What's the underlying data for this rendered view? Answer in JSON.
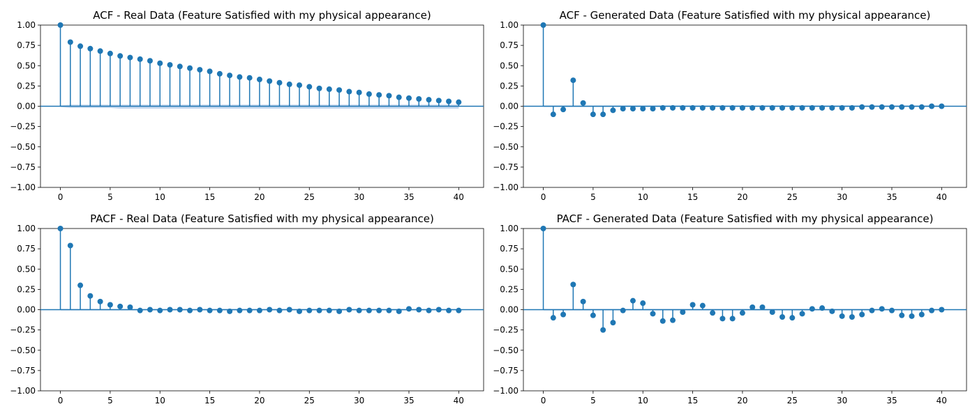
{
  "colors": {
    "stem": "#1f77b4",
    "band": "#aec7e8",
    "axis": "#000000"
  },
  "chart_data": [
    {
      "type": "stem",
      "title": "ACF - Real Data (Feature Satisfied with my physical appearance)",
      "xlim": [
        -2,
        42.5
      ],
      "ylim": [
        -1.0,
        1.0
      ],
      "xticks": [
        0,
        5,
        10,
        15,
        20,
        25,
        30,
        35,
        40
      ],
      "yticks": [
        1.0,
        0.75,
        0.5,
        0.25,
        0.0,
        -0.25,
        -0.5,
        -0.75,
        -1.0
      ],
      "ytick_labels": [
        "1.00",
        "0.75",
        "0.50",
        "0.25",
        "0.00",
        "−0.25",
        "−0.50",
        "−0.75",
        "−1.00"
      ],
      "lags": [
        0,
        1,
        2,
        3,
        4,
        5,
        6,
        7,
        8,
        9,
        10,
        11,
        12,
        13,
        14,
        15,
        16,
        17,
        18,
        19,
        20,
        21,
        22,
        23,
        24,
        25,
        26,
        27,
        28,
        29,
        30,
        31,
        32,
        33,
        34,
        35,
        36,
        37,
        38,
        39,
        40
      ],
      "values": [
        1.0,
        0.79,
        0.74,
        0.71,
        0.68,
        0.65,
        0.62,
        0.6,
        0.58,
        0.56,
        0.53,
        0.51,
        0.49,
        0.47,
        0.45,
        0.43,
        0.4,
        0.38,
        0.36,
        0.35,
        0.33,
        0.31,
        0.29,
        0.27,
        0.26,
        0.24,
        0.22,
        0.21,
        0.2,
        0.18,
        0.17,
        0.15,
        0.14,
        0.13,
        0.11,
        0.1,
        0.09,
        0.08,
        0.07,
        0.06,
        0.05
      ],
      "confidence_band": {
        "upper": [
          0.01,
          0.02,
          0.02,
          0.02,
          0.02,
          0.02,
          0.02,
          0.02,
          0.02,
          0.02,
          0.02,
          0.02,
          0.02,
          0.02,
          0.02,
          0.02,
          0.02,
          0.02,
          0.02,
          0.02,
          0.02,
          0.02,
          0.02,
          0.02,
          0.02,
          0.02,
          0.02,
          0.02,
          0.02,
          0.02,
          0.02,
          0.02,
          0.02,
          0.02,
          0.02,
          0.02,
          0.02,
          0.02,
          0.02,
          0.02,
          0.02
        ],
        "lower": [
          -0.01,
          -0.02,
          -0.02,
          -0.02,
          -0.02,
          -0.02,
          -0.03,
          -0.03,
          -0.03,
          -0.03,
          -0.03,
          -0.03,
          -0.03,
          -0.03,
          -0.03,
          -0.03,
          -0.03,
          -0.03,
          -0.03,
          -0.03,
          -0.03,
          -0.03,
          -0.03,
          -0.03,
          -0.03,
          -0.03,
          -0.03,
          -0.03,
          -0.03,
          -0.03,
          -0.03,
          -0.03,
          -0.03,
          -0.03,
          -0.03,
          -0.03,
          -0.03,
          -0.03,
          -0.03,
          -0.03,
          -0.03
        ]
      }
    },
    {
      "type": "stem",
      "title": "ACF - Generated Data (Feature Satisfied with my physical appearance)",
      "xlim": [
        -2,
        42.5
      ],
      "ylim": [
        -1.0,
        1.0
      ],
      "xticks": [
        0,
        5,
        10,
        15,
        20,
        25,
        30,
        35,
        40
      ],
      "yticks": [
        1.0,
        0.75,
        0.5,
        0.25,
        0.0,
        -0.25,
        -0.5,
        -0.75,
        -1.0
      ],
      "ytick_labels": [
        "1.00",
        "0.75",
        "0.50",
        "0.25",
        "0.00",
        "−0.25",
        "−0.50",
        "−0.75",
        "−1.00"
      ],
      "lags": [
        0,
        1,
        2,
        3,
        4,
        5,
        6,
        7,
        8,
        9,
        10,
        11,
        12,
        13,
        14,
        15,
        16,
        17,
        18,
        19,
        20,
        21,
        22,
        23,
        24,
        25,
        26,
        27,
        28,
        29,
        30,
        31,
        32,
        33,
        34,
        35,
        36,
        37,
        38,
        39,
        40
      ],
      "values": [
        1.0,
        -0.1,
        -0.04,
        0.32,
        0.04,
        -0.1,
        -0.1,
        -0.05,
        -0.03,
        -0.03,
        -0.03,
        -0.03,
        -0.02,
        -0.02,
        -0.02,
        -0.02,
        -0.02,
        -0.02,
        -0.02,
        -0.02,
        -0.02,
        -0.02,
        -0.02,
        -0.02,
        -0.02,
        -0.02,
        -0.02,
        -0.02,
        -0.02,
        -0.02,
        -0.02,
        -0.02,
        -0.01,
        -0.01,
        -0.01,
        -0.01,
        -0.01,
        -0.01,
        -0.01,
        0.0,
        0.0
      ],
      "confidence_band": {
        "upper": [
          0.01,
          0.01,
          0.01,
          0.01,
          0.01,
          0.01,
          0.01,
          0.01,
          0.01,
          0.01,
          0.01,
          0.01,
          0.01,
          0.01,
          0.01,
          0.01,
          0.01,
          0.01,
          0.01,
          0.01,
          0.01,
          0.01,
          0.01,
          0.01,
          0.01,
          0.01,
          0.01,
          0.01,
          0.01,
          0.01,
          0.01,
          0.01,
          0.01,
          0.01,
          0.01,
          0.01,
          0.01,
          0.01,
          0.01,
          0.01,
          0.01
        ],
        "lower": [
          -0.01,
          -0.01,
          -0.01,
          -0.01,
          -0.01,
          -0.01,
          -0.01,
          -0.01,
          -0.01,
          -0.01,
          -0.01,
          -0.01,
          -0.01,
          -0.01,
          -0.01,
          -0.01,
          -0.01,
          -0.01,
          -0.01,
          -0.01,
          -0.01,
          -0.01,
          -0.01,
          -0.01,
          -0.01,
          -0.01,
          -0.01,
          -0.01,
          -0.01,
          -0.01,
          -0.01,
          -0.01,
          -0.01,
          -0.01,
          -0.01,
          -0.01,
          -0.01,
          -0.01,
          -0.01,
          -0.01,
          -0.01
        ]
      }
    },
    {
      "type": "stem",
      "title": "PACF - Real Data (Feature Satisfied with my physical appearance)",
      "xlim": [
        -2,
        42.5
      ],
      "ylim": [
        -1.0,
        1.0
      ],
      "xticks": [
        0,
        5,
        10,
        15,
        20,
        25,
        30,
        35,
        40
      ],
      "yticks": [
        1.0,
        0.75,
        0.5,
        0.25,
        0.0,
        -0.25,
        -0.5,
        -0.75,
        -1.0
      ],
      "ytick_labels": [
        "1.00",
        "0.75",
        "0.50",
        "0.25",
        "0.00",
        "−0.25",
        "−0.50",
        "−0.75",
        "−1.00"
      ],
      "lags": [
        0,
        1,
        2,
        3,
        4,
        5,
        6,
        7,
        8,
        9,
        10,
        11,
        12,
        13,
        14,
        15,
        16,
        17,
        18,
        19,
        20,
        21,
        22,
        23,
        24,
        25,
        26,
        27,
        28,
        29,
        30,
        31,
        32,
        33,
        34,
        35,
        36,
        37,
        38,
        39,
        40
      ],
      "values": [
        1.0,
        0.79,
        0.3,
        0.17,
        0.1,
        0.06,
        0.04,
        0.03,
        -0.01,
        0.0,
        -0.01,
        0.0,
        0.0,
        -0.01,
        0.0,
        -0.01,
        -0.01,
        -0.02,
        -0.01,
        -0.01,
        -0.01,
        0.0,
        -0.01,
        0.0,
        -0.02,
        -0.01,
        -0.01,
        -0.01,
        -0.02,
        0.0,
        -0.01,
        -0.01,
        -0.01,
        -0.01,
        -0.02,
        0.01,
        0.0,
        -0.01,
        0.0,
        -0.01,
        -0.01
      ],
      "confidence_band": {
        "upper": [
          0.01,
          0.01,
          0.01,
          0.01,
          0.01,
          0.01,
          0.01,
          0.01,
          0.01,
          0.01,
          0.01,
          0.01,
          0.01,
          0.01,
          0.01,
          0.01,
          0.01,
          0.01,
          0.01,
          0.01,
          0.01,
          0.01,
          0.01,
          0.01,
          0.01,
          0.01,
          0.01,
          0.01,
          0.01,
          0.01,
          0.01,
          0.01,
          0.01,
          0.01,
          0.01,
          0.01,
          0.01,
          0.01,
          0.01,
          0.01,
          0.01
        ],
        "lower": [
          -0.01,
          -0.01,
          -0.01,
          -0.01,
          -0.01,
          -0.01,
          -0.01,
          -0.01,
          -0.01,
          -0.01,
          -0.01,
          -0.01,
          -0.01,
          -0.01,
          -0.01,
          -0.01,
          -0.01,
          -0.01,
          -0.01,
          -0.01,
          -0.01,
          -0.01,
          -0.01,
          -0.01,
          -0.01,
          -0.01,
          -0.01,
          -0.01,
          -0.01,
          -0.01,
          -0.01,
          -0.01,
          -0.01,
          -0.01,
          -0.01,
          -0.01,
          -0.01,
          -0.01,
          -0.01,
          -0.01,
          -0.01
        ]
      }
    },
    {
      "type": "stem",
      "title": "PACF - Generated Data (Feature Satisfied with my physical appearance)",
      "xlim": [
        -2,
        42.5
      ],
      "ylim": [
        -1.0,
        1.0
      ],
      "xticks": [
        0,
        5,
        10,
        15,
        20,
        25,
        30,
        35,
        40
      ],
      "yticks": [
        1.0,
        0.75,
        0.5,
        0.25,
        0.0,
        -0.25,
        -0.5,
        -0.75,
        -1.0
      ],
      "ytick_labels": [
        "1.00",
        "0.75",
        "0.50",
        "0.25",
        "0.00",
        "−0.25",
        "−0.50",
        "−0.75",
        "−1.00"
      ],
      "lags": [
        0,
        1,
        2,
        3,
        4,
        5,
        6,
        7,
        8,
        9,
        10,
        11,
        12,
        13,
        14,
        15,
        16,
        17,
        18,
        19,
        20,
        21,
        22,
        23,
        24,
        25,
        26,
        27,
        28,
        29,
        30,
        31,
        32,
        33,
        34,
        35,
        36,
        37,
        38,
        39,
        40
      ],
      "values": [
        1.0,
        -0.1,
        -0.06,
        0.31,
        0.1,
        -0.07,
        -0.25,
        -0.16,
        -0.01,
        0.11,
        0.08,
        -0.05,
        -0.14,
        -0.13,
        -0.03,
        0.06,
        0.05,
        -0.04,
        -0.11,
        -0.11,
        -0.04,
        0.03,
        0.03,
        -0.03,
        -0.09,
        -0.1,
        -0.05,
        0.01,
        0.02,
        -0.02,
        -0.08,
        -0.09,
        -0.06,
        -0.01,
        0.01,
        -0.01,
        -0.07,
        -0.08,
        -0.06,
        -0.01,
        0.0
      ],
      "confidence_band": {
        "upper": [
          0.01,
          0.01,
          0.01,
          0.01,
          0.01,
          0.01,
          0.01,
          0.01,
          0.01,
          0.01,
          0.01,
          0.01,
          0.01,
          0.01,
          0.01,
          0.01,
          0.01,
          0.01,
          0.01,
          0.01,
          0.01,
          0.01,
          0.01,
          0.01,
          0.01,
          0.01,
          0.01,
          0.01,
          0.01,
          0.01,
          0.01,
          0.01,
          0.01,
          0.01,
          0.01,
          0.01,
          0.01,
          0.01,
          0.01,
          0.01,
          0.01
        ],
        "lower": [
          -0.01,
          -0.01,
          -0.01,
          -0.01,
          -0.01,
          -0.01,
          -0.01,
          -0.01,
          -0.01,
          -0.01,
          -0.01,
          -0.01,
          -0.01,
          -0.01,
          -0.01,
          -0.01,
          -0.01,
          -0.01,
          -0.01,
          -0.01,
          -0.01,
          -0.01,
          -0.01,
          -0.01,
          -0.01,
          -0.01,
          -0.01,
          -0.01,
          -0.01,
          -0.01,
          -0.01,
          -0.01,
          -0.01,
          -0.01,
          -0.01,
          -0.01,
          -0.01,
          -0.01,
          -0.01,
          -0.01,
          -0.01
        ]
      }
    }
  ]
}
